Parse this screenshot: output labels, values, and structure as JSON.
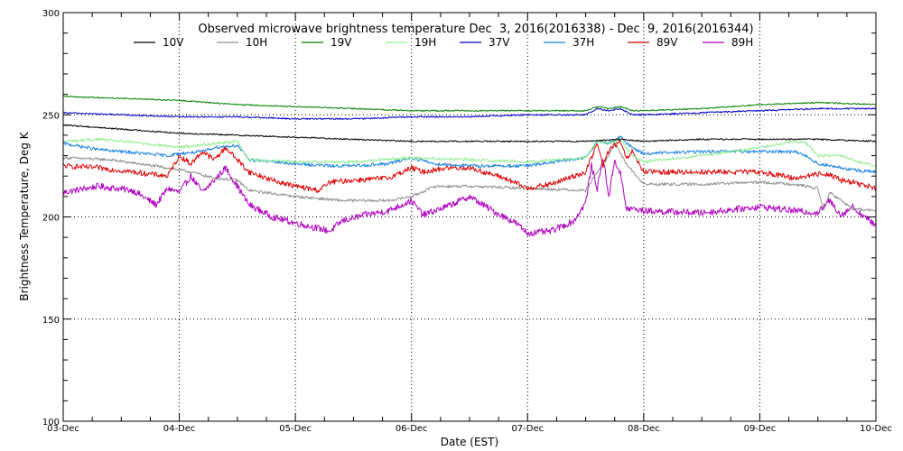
{
  "chart_data": {
    "type": "line",
    "title": "Observed microwave brightness temperature Dec  3, 2016(2016338) - Dec  9, 2016(2016344)",
    "xlabel": "Date (EST)",
    "ylabel": "Brightness Temperature, Deg K",
    "xlim": [
      0,
      7
    ],
    "ylim": [
      100,
      300
    ],
    "y_ticks": [
      100,
      150,
      200,
      250,
      300
    ],
    "y_tick_labels": [
      "100",
      "150",
      "200",
      "250",
      "300"
    ],
    "x_ticks": [
      0,
      1,
      2,
      3,
      4,
      5,
      6,
      7
    ],
    "x_tick_labels": [
      "03-Dec",
      "04-Dec",
      "05-Dec",
      "06-Dec",
      "07-Dec",
      "08-Dec",
      "09-Dec",
      "10-Dec"
    ],
    "grid": "dotted",
    "x_unit": "days since 03-Dec 00:00 EST",
    "series": [
      {
        "name": "10V",
        "color": "#000000",
        "x": [
          0,
          0.5,
          1.0,
          1.5,
          2.0,
          2.5,
          3.0,
          3.5,
          4.0,
          4.5,
          4.8,
          5.0,
          5.5,
          6.0,
          6.5,
          7.0
        ],
        "y": [
          245,
          243,
          241,
          240,
          239,
          238,
          237,
          237,
          237,
          237,
          238,
          237,
          238,
          238,
          238,
          237
        ]
      },
      {
        "name": "10H",
        "color": "#909090",
        "x": [
          0,
          0.4,
          0.9,
          1.1,
          1.3,
          1.5,
          1.6,
          2.0,
          2.4,
          2.8,
          3.0,
          3.2,
          3.5,
          4.0,
          4.5,
          4.6,
          4.7,
          4.75,
          4.85,
          5.0,
          5.5,
          6.0,
          6.3,
          6.5,
          6.55,
          6.6,
          6.8,
          7.0
        ],
        "y": [
          229,
          228,
          224,
          222,
          219,
          218,
          213,
          210,
          208,
          208,
          210,
          215,
          215,
          214,
          213,
          222,
          230,
          236,
          226,
          216,
          216,
          217,
          216,
          214,
          203,
          212,
          204,
          203
        ]
      },
      {
        "name": "19V",
        "color": "#008000",
        "x": [
          0,
          0.5,
          1.0,
          1.5,
          2.0,
          2.5,
          3.0,
          3.5,
          4.0,
          4.5,
          4.6,
          4.7,
          4.8,
          4.9,
          5.0,
          5.5,
          6.0,
          6.5,
          7.0
        ],
        "y": [
          259,
          258,
          257,
          255,
          254,
          253,
          252,
          252,
          252,
          252,
          254,
          253,
          254,
          252,
          252,
          253,
          255,
          256,
          255
        ]
      },
      {
        "name": "19H",
        "color": "#90ee90",
        "x": [
          0,
          0.3,
          0.7,
          1.0,
          1.3,
          1.5,
          1.6,
          2.0,
          2.5,
          3.0,
          3.5,
          4.0,
          4.5,
          4.6,
          4.7,
          4.8,
          4.9,
          5.0,
          5.5,
          6.0,
          6.3,
          6.4,
          6.5,
          6.7,
          6.85,
          7.0
        ],
        "y": [
          237,
          238,
          236,
          234,
          236,
          237,
          228,
          227,
          227,
          229,
          228,
          227,
          229,
          237,
          236,
          238,
          230,
          227,
          230,
          234,
          237,
          236,
          230,
          230,
          227,
          225
        ]
      },
      {
        "name": "37V",
        "color": "#0000c8",
        "x": [
          0,
          0.5,
          1.0,
          1.5,
          2.0,
          2.5,
          3.0,
          3.5,
          4.0,
          4.5,
          4.6,
          4.7,
          4.8,
          4.9,
          5.0,
          5.5,
          6.0,
          6.5,
          7.0
        ],
        "y": [
          251,
          250,
          249,
          249,
          248,
          248,
          249,
          249,
          250,
          250,
          253,
          252,
          253,
          250,
          250,
          251,
          252,
          253,
          253
        ]
      },
      {
        "name": "37H",
        "color": "#1a82e0",
        "x": [
          0,
          0.3,
          0.7,
          0.9,
          1.0,
          1.2,
          1.3,
          1.5,
          1.6,
          2.0,
          2.3,
          2.5,
          2.8,
          3.0,
          3.2,
          3.5,
          4.0,
          4.5,
          4.6,
          4.7,
          4.8,
          4.9,
          5.0,
          5.5,
          6.0,
          6.3,
          6.4,
          6.5,
          6.6,
          6.8,
          7.0
        ],
        "y": [
          236,
          233,
          231,
          230,
          231,
          232,
          234,
          235,
          228,
          226,
          225,
          225,
          226,
          229,
          226,
          225,
          225,
          229,
          237,
          236,
          239,
          234,
          231,
          232,
          232,
          232,
          230,
          226,
          225,
          223,
          222
        ]
      },
      {
        "name": "89V",
        "color": "#e00000",
        "x": [
          0,
          0.3,
          0.6,
          0.9,
          1.0,
          1.1,
          1.2,
          1.3,
          1.4,
          1.5,
          1.6,
          1.8,
          2.0,
          2.2,
          2.3,
          2.5,
          2.8,
          3.0,
          3.1,
          3.3,
          3.5,
          3.8,
          4.0,
          4.2,
          4.4,
          4.5,
          4.6,
          4.65,
          4.7,
          4.75,
          4.8,
          4.85,
          4.9,
          5.0,
          5.5,
          6.0,
          6.3,
          6.5,
          6.6,
          6.7,
          6.8,
          7.0
        ],
        "y": [
          225,
          224,
          222,
          220,
          230,
          226,
          232,
          228,
          234,
          228,
          222,
          218,
          215,
          213,
          217,
          218,
          219,
          224,
          222,
          224,
          224,
          219,
          214,
          216,
          220,
          222,
          236,
          225,
          233,
          235,
          237,
          228,
          232,
          222,
          222,
          222,
          219,
          221,
          221,
          218,
          217,
          214
        ]
      },
      {
        "name": "89H",
        "color": "#b000c0",
        "x": [
          0,
          0.3,
          0.6,
          0.8,
          0.9,
          1.0,
          1.1,
          1.2,
          1.3,
          1.4,
          1.5,
          1.6,
          1.8,
          2.0,
          2.3,
          2.4,
          2.6,
          2.8,
          3.0,
          3.1,
          3.3,
          3.5,
          3.7,
          3.9,
          4.0,
          4.2,
          4.4,
          4.5,
          4.55,
          4.6,
          4.65,
          4.7,
          4.75,
          4.8,
          4.85,
          4.9,
          5.0,
          5.5,
          6.0,
          6.3,
          6.5,
          6.6,
          6.7,
          6.8,
          6.9,
          7.0
        ],
        "y": [
          212,
          215,
          213,
          206,
          214,
          212,
          220,
          212,
          218,
          224,
          215,
          206,
          200,
          197,
          193,
          198,
          201,
          203,
          208,
          201,
          205,
          210,
          203,
          197,
          192,
          193,
          198,
          207,
          225,
          214,
          229,
          210,
          228,
          221,
          204,
          204,
          203,
          202,
          205,
          203,
          202,
          208,
          201,
          205,
          200,
          196
        ]
      }
    ]
  }
}
